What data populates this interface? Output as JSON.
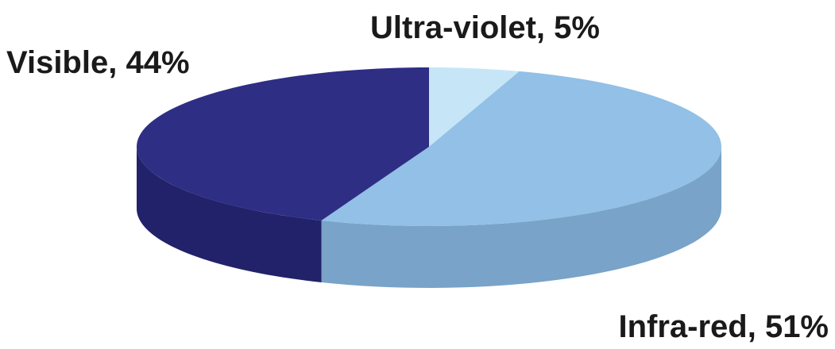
{
  "chart_data": {
    "type": "pie",
    "style": "3d",
    "title": "",
    "slices": [
      {
        "label": "Ultra-violet, 5%",
        "category": "Ultra-violet",
        "value": 5,
        "top_color": "#c6e6f8",
        "side_color": "#9fc2dc"
      },
      {
        "label": "Infra-red, 51%",
        "category": "Infra-red",
        "value": 51,
        "top_color": "#92c0e6",
        "side_color": "#79a3c8"
      },
      {
        "label": "Visible, 44%",
        "category": "Visible",
        "value": 44,
        "top_color": "#2e2e85",
        "side_color": "#22226a"
      }
    ]
  }
}
